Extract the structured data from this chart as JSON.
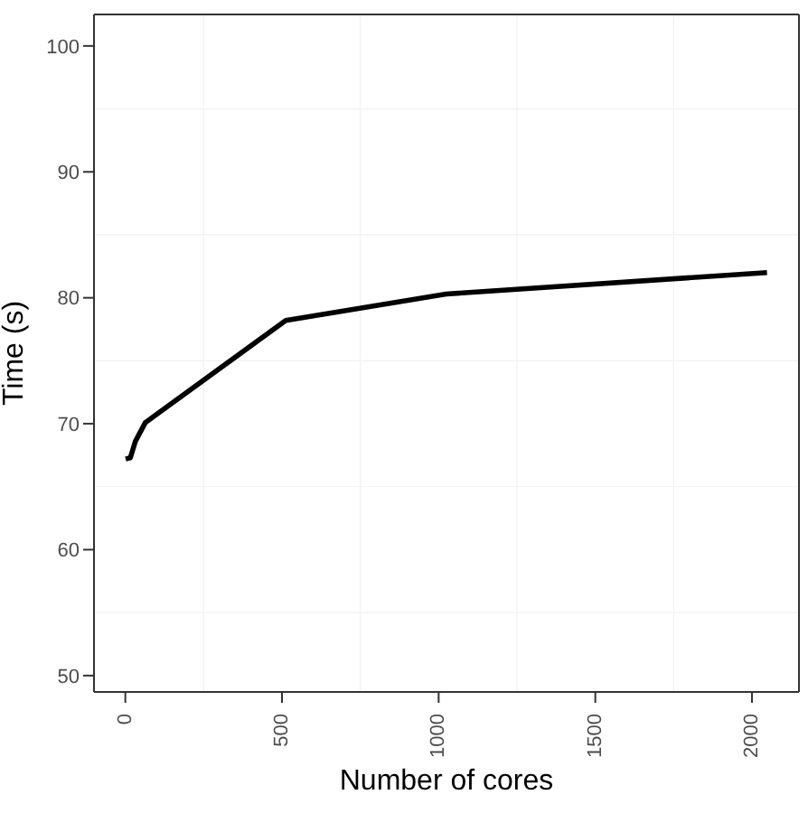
{
  "chart_data": {
    "type": "line",
    "xlabel": "Number of cores",
    "ylabel": "Time (s)",
    "x": [
      1,
      16,
      32,
      64,
      512,
      1024,
      2048
    ],
    "series": [
      {
        "color": "#000000",
        "values": [
          67.2,
          67.3,
          68.6,
          70.1,
          78.2,
          80.3,
          82.0
        ]
      }
    ],
    "xlim": [
      -100,
      2150
    ],
    "xticks": [
      0,
      500,
      1000,
      1500,
      2000
    ],
    "ylim": [
      48.7,
      102.5
    ],
    "yticks": [
      50,
      60,
      70,
      80,
      90,
      100
    ],
    "grid": true,
    "marker": "none",
    "line_style": "solid"
  }
}
